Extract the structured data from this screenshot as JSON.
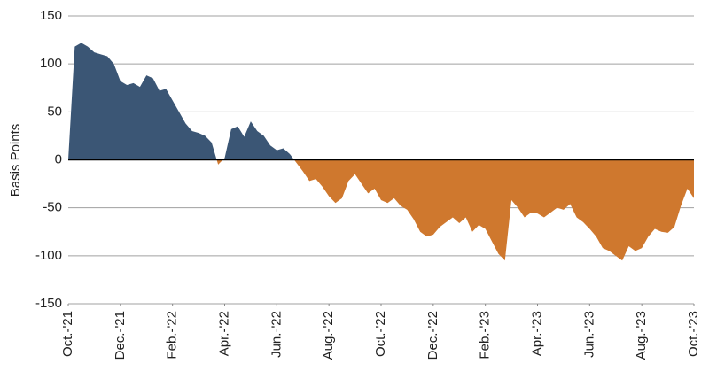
{
  "chart_data": {
    "type": "area",
    "y_label": "Basis Points",
    "x": [
      0,
      0.25,
      0.5,
      0.75,
      1,
      1.25,
      1.5,
      1.75,
      2,
      2.25,
      2.5,
      2.75,
      3,
      3.25,
      3.5,
      3.75,
      4,
      4.25,
      4.5,
      4.75,
      5,
      5.25,
      5.5,
      5.75,
      6,
      6.25,
      6.5,
      6.75,
      7,
      7.25,
      7.5,
      7.75,
      8,
      8.25,
      8.5,
      8.75,
      9,
      9.25,
      9.5,
      9.75,
      10,
      10.25,
      10.5,
      10.75,
      11,
      11.25,
      11.5,
      11.75,
      12,
      12.25,
      12.5,
      12.75,
      13,
      13.25,
      13.5,
      13.75,
      14,
      14.25,
      14.5,
      14.75,
      15,
      15.25,
      15.5,
      15.75,
      16,
      16.25,
      16.5,
      16.75,
      17,
      17.25,
      17.5,
      17.75,
      18,
      18.25,
      18.5,
      18.75,
      19,
      19.25,
      19.5,
      19.75,
      20,
      20.25,
      20.5,
      20.75,
      21,
      21.25,
      21.5,
      21.75,
      22,
      22.25,
      22.5,
      22.75,
      23,
      23.25,
      23.5,
      23.75,
      24
    ],
    "values": [
      0,
      118,
      122,
      118,
      112,
      110,
      108,
      100,
      82,
      78,
      80,
      76,
      88,
      85,
      72,
      74,
      62,
      50,
      38,
      30,
      28,
      25,
      18,
      -5,
      2,
      32,
      35,
      24,
      40,
      30,
      25,
      15,
      10,
      12,
      6,
      -3,
      -12,
      -22,
      -20,
      -28,
      -38,
      -45,
      -40,
      -22,
      -15,
      -25,
      -35,
      -30,
      -42,
      -45,
      -40,
      -48,
      -52,
      -62,
      -75,
      -80,
      -78,
      -70,
      -65,
      -60,
      -66,
      -60,
      -75,
      -68,
      -72,
      -85,
      -98,
      -105,
      -42,
      -50,
      -60,
      -55,
      -56,
      -60,
      -55,
      -50,
      -52,
      -46,
      -60,
      -65,
      -72,
      -80,
      -92,
      -95,
      -100,
      -105,
      -90,
      -95,
      -92,
      -80,
      -72,
      -75,
      -76,
      -70,
      -48,
      -30,
      -40
    ],
    "positive_color": "#3b5675",
    "negative_color": "#cf782e",
    "xlim": [
      0,
      24
    ],
    "xticks": [
      {
        "value": 0,
        "label": "Oct.-'21"
      },
      {
        "value": 2,
        "label": "Dec.-'21"
      },
      {
        "value": 4,
        "label": "Feb.-'22"
      },
      {
        "value": 6,
        "label": "Apr.-'22"
      },
      {
        "value": 8,
        "label": "Jun.-'22"
      },
      {
        "value": 10,
        "label": "Aug.-'22"
      },
      {
        "value": 12,
        "label": "Oct.-'22"
      },
      {
        "value": 14,
        "label": "Dec.-'22"
      },
      {
        "value": 16,
        "label": "Feb.-'23"
      },
      {
        "value": 18,
        "label": "Apr.-'23"
      },
      {
        "value": 20,
        "label": "Jun.-'23"
      },
      {
        "value": 22,
        "label": "Aug.-'23"
      },
      {
        "value": 24,
        "label": "Oct.-'23"
      }
    ],
    "ylim": [
      -150,
      150
    ],
    "yticks": [
      -150,
      -100,
      -50,
      0,
      50,
      100,
      150
    ],
    "grid": true
  }
}
